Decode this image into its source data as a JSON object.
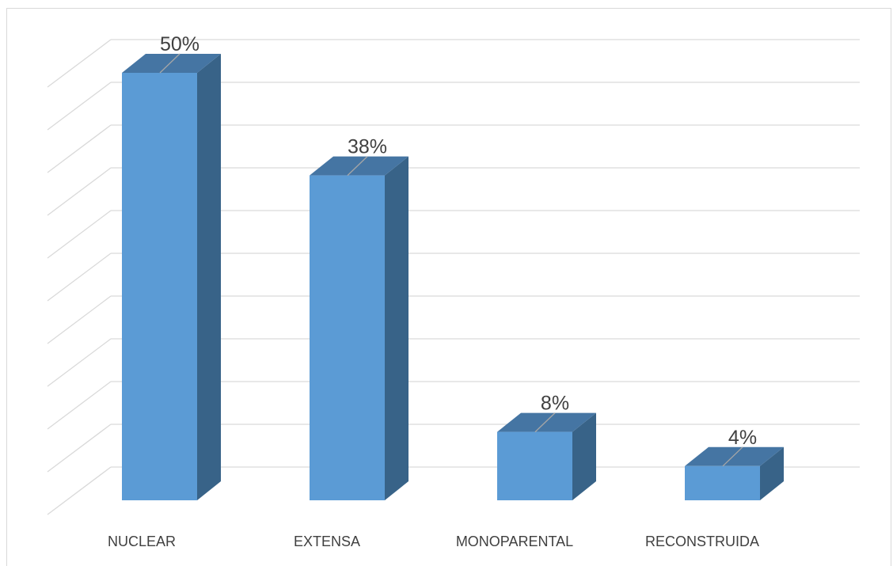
{
  "chart_data": {
    "type": "bar",
    "style": "3d-column",
    "categories": [
      "NUCLEAR",
      "EXTENSA",
      "MONOPARENTAL",
      "RECONSTRUIDA"
    ],
    "values": [
      50,
      38,
      8,
      4
    ],
    "value_labels": [
      "50%",
      "38%",
      "8%",
      "4%"
    ],
    "ylim": [
      0,
      50
    ],
    "grid": true,
    "legend": "none",
    "colors": {
      "bar_front": "#5b9bd5",
      "bar_side": "#386388",
      "bar_top": "#4575a3",
      "gridline": "#d9d9d9",
      "text": "#404040",
      "leader": "#a6a6a6"
    }
  }
}
